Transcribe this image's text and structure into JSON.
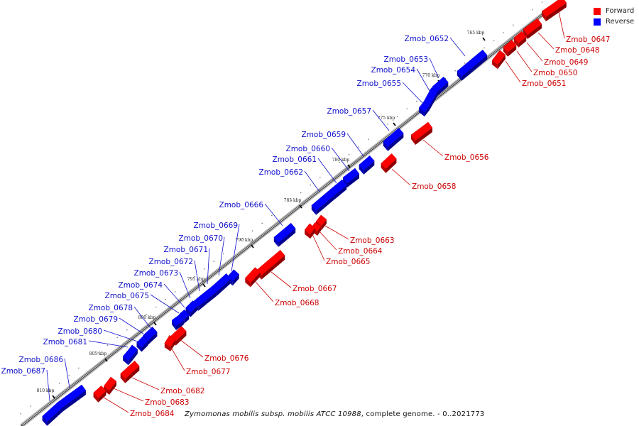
{
  "legend": {
    "forward_label": "Forward",
    "reverse_label": "Reverse",
    "forward_color": "#ff0000",
    "reverse_color": "#0000ff"
  },
  "caption": {
    "organism": "Zymomonas mobilis subsp. mobilis ATCC 10988",
    "suffix": ", complete genome. - 0..2021773"
  },
  "ticks": [
    "765 kbp",
    "770 kbp",
    "775 kbp",
    "780 kbp",
    "785 kbp",
    "790 kbp",
    "795 kbp",
    "800 kbp",
    "805 kbp",
    "810 kbp"
  ],
  "genes": {
    "forward": [
      "Zmob_0647",
      "Zmob_0648",
      "Zmob_0649",
      "Zmob_0650",
      "Zmob_0651",
      "Zmob_0656",
      "Zmob_0658",
      "Zmob_0663",
      "Zmob_0664",
      "Zmob_0665",
      "Zmob_0667",
      "Zmob_0668",
      "Zmob_0676",
      "Zmob_0677",
      "Zmob_0682",
      "Zmob_0683",
      "Zmob_0684"
    ],
    "reverse": [
      "Zmob_0652",
      "Zmob_0653",
      "Zmob_0654",
      "Zmob_0655",
      "Zmob_0657",
      "Zmob_0659",
      "Zmob_0660",
      "Zmob_0661",
      "Zmob_0662",
      "Zmob_0666",
      "Zmob_0669",
      "Zmob_0670",
      "Zmob_0671",
      "Zmob_0672",
      "Zmob_0673",
      "Zmob_0674",
      "Zmob_0675",
      "Zmob_0678",
      "Zmob_0679",
      "Zmob_0680",
      "Zmob_0681",
      "Zmob_0686",
      "Zmob_0687"
    ]
  }
}
